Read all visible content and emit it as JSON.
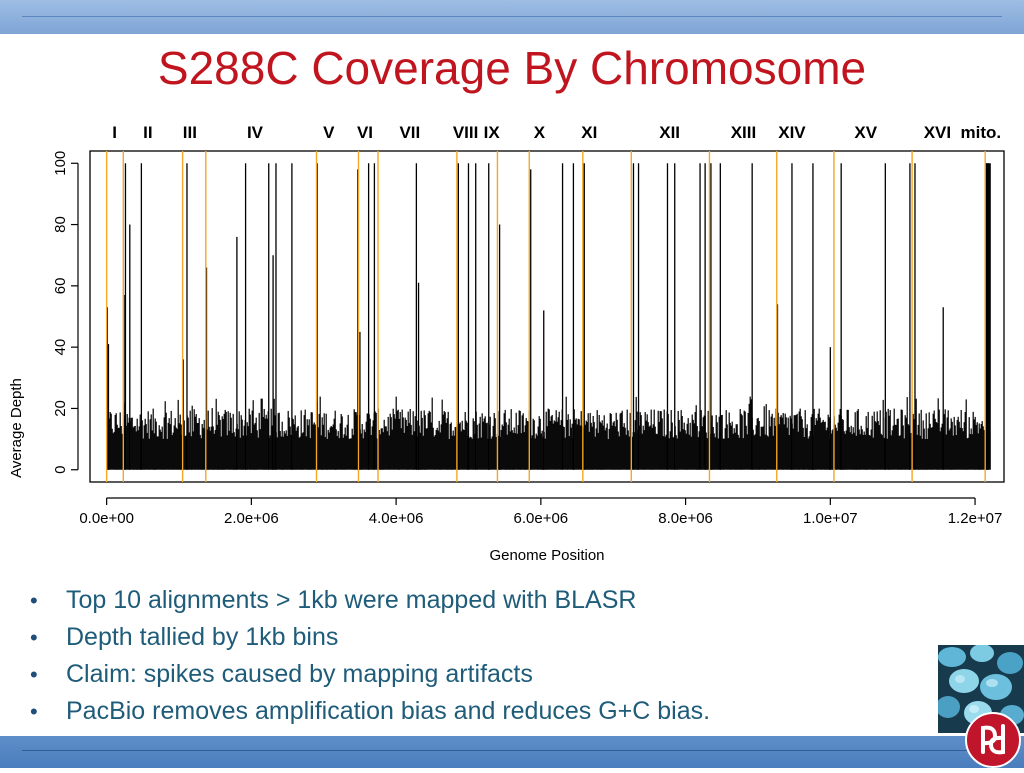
{
  "slide": {
    "title": "S288C Coverage By Chromosome"
  },
  "bullets": [
    "Top 10 alignments > 1kb were mapped with BLASR",
    "Depth tallied by 1kb bins",
    "Claim: spikes caused by mapping artifacts",
    "PacBio removes amplification bias and reduces G+C bias."
  ],
  "colors": {
    "title": "#c0151f",
    "bullet_text": "#1f5c7a",
    "boundary_line": "#f5a623",
    "bars": "#000000",
    "band_top": "#8fb3df",
    "band_bottom": "#4f82c2"
  },
  "images": {
    "photo": "yeast-cells-photo",
    "logo": "pacbio-logo-icon"
  },
  "chart_data": {
    "type": "bar",
    "xlabel": "Genome Position",
    "ylabel": "Average Depth",
    "xlim": [
      -230000,
      12400000
    ],
    "ylim": [
      -4,
      104
    ],
    "x_ticks": [
      0,
      2000000,
      4000000,
      6000000,
      8000000,
      10000000,
      12000000
    ],
    "x_tick_labels": [
      "0.0e+00",
      "2.0e+06",
      "4.0e+06",
      "6.0e+06",
      "8.0e+06",
      "1.0e+07",
      "1.2e+07"
    ],
    "y_ticks": [
      0,
      20,
      40,
      60,
      80,
      100
    ],
    "y_tick_labels": [
      "0",
      "20",
      "40",
      "60",
      "80",
      "100"
    ],
    "bin_size": 1000,
    "genome_end": 12160000,
    "baseline_depth_range": [
      10,
      20
    ],
    "chromosome_labels": [
      {
        "name": "I",
        "center": 110000
      },
      {
        "name": "II",
        "center": 570000
      },
      {
        "name": "III",
        "center": 1150000
      },
      {
        "name": "IV",
        "center": 2050000
      },
      {
        "name": "V",
        "center": 3070000
      },
      {
        "name": "VI",
        "center": 3570000
      },
      {
        "name": "VII",
        "center": 4190000
      },
      {
        "name": "VIII",
        "center": 4960000
      },
      {
        "name": "IX",
        "center": 5320000
      },
      {
        "name": "X",
        "center": 5980000
      },
      {
        "name": "XI",
        "center": 6670000
      },
      {
        "name": "XII",
        "center": 7780000
      },
      {
        "name": "XIII",
        "center": 8800000
      },
      {
        "name": "XIV",
        "center": 9470000
      },
      {
        "name": "XV",
        "center": 10490000
      },
      {
        "name": "XVI",
        "center": 11480000
      },
      {
        "name": "mito.",
        "center": 12080000
      }
    ],
    "chromosome_boundaries": [
      0,
      230000,
      1050000,
      1370000,
      2900000,
      3480000,
      3750000,
      4840000,
      5400000,
      5840000,
      6580000,
      7250000,
      8330000,
      9260000,
      10050000,
      11130000,
      12140000
    ],
    "spikes": [
      {
        "x": 10000,
        "y": 53
      },
      {
        "x": 25000,
        "y": 41
      },
      {
        "x": 240000,
        "y": 57
      },
      {
        "x": 260000,
        "y": 100
      },
      {
        "x": 320000,
        "y": 80
      },
      {
        "x": 480000,
        "y": 100
      },
      {
        "x": 1060000,
        "y": 36
      },
      {
        "x": 1110000,
        "y": 100
      },
      {
        "x": 1380000,
        "y": 66
      },
      {
        "x": 1800000,
        "y": 76
      },
      {
        "x": 1920000,
        "y": 100
      },
      {
        "x": 2240000,
        "y": 100
      },
      {
        "x": 2300000,
        "y": 70
      },
      {
        "x": 2340000,
        "y": 100
      },
      {
        "x": 2560000,
        "y": 100
      },
      {
        "x": 2910000,
        "y": 100
      },
      {
        "x": 3470000,
        "y": 98
      },
      {
        "x": 3500000,
        "y": 45
      },
      {
        "x": 3620000,
        "y": 100
      },
      {
        "x": 3700000,
        "y": 100
      },
      {
        "x": 4280000,
        "y": 100
      },
      {
        "x": 4310000,
        "y": 61
      },
      {
        "x": 4860000,
        "y": 100
      },
      {
        "x": 5000000,
        "y": 100
      },
      {
        "x": 5100000,
        "y": 100
      },
      {
        "x": 5280000,
        "y": 100
      },
      {
        "x": 5430000,
        "y": 80
      },
      {
        "x": 5860000,
        "y": 98
      },
      {
        "x": 6040000,
        "y": 52
      },
      {
        "x": 6300000,
        "y": 100
      },
      {
        "x": 6450000,
        "y": 100
      },
      {
        "x": 6600000,
        "y": 100
      },
      {
        "x": 7280000,
        "y": 100
      },
      {
        "x": 7350000,
        "y": 100
      },
      {
        "x": 7750000,
        "y": 100
      },
      {
        "x": 7850000,
        "y": 100
      },
      {
        "x": 8200000,
        "y": 100
      },
      {
        "x": 8270000,
        "y": 100
      },
      {
        "x": 8350000,
        "y": 100
      },
      {
        "x": 8480000,
        "y": 100
      },
      {
        "x": 8920000,
        "y": 100
      },
      {
        "x": 9270000,
        "y": 54
      },
      {
        "x": 9470000,
        "y": 100
      },
      {
        "x": 9760000,
        "y": 100
      },
      {
        "x": 10000000,
        "y": 40
      },
      {
        "x": 10150000,
        "y": 100
      },
      {
        "x": 10760000,
        "y": 100
      },
      {
        "x": 11100000,
        "y": 100
      },
      {
        "x": 11170000,
        "y": 100
      },
      {
        "x": 11560000,
        "y": 53
      },
      {
        "x": 12140000,
        "y": 100
      },
      {
        "x": 12160000,
        "y": 100
      },
      {
        "x": 12180000,
        "y": 100
      }
    ]
  }
}
